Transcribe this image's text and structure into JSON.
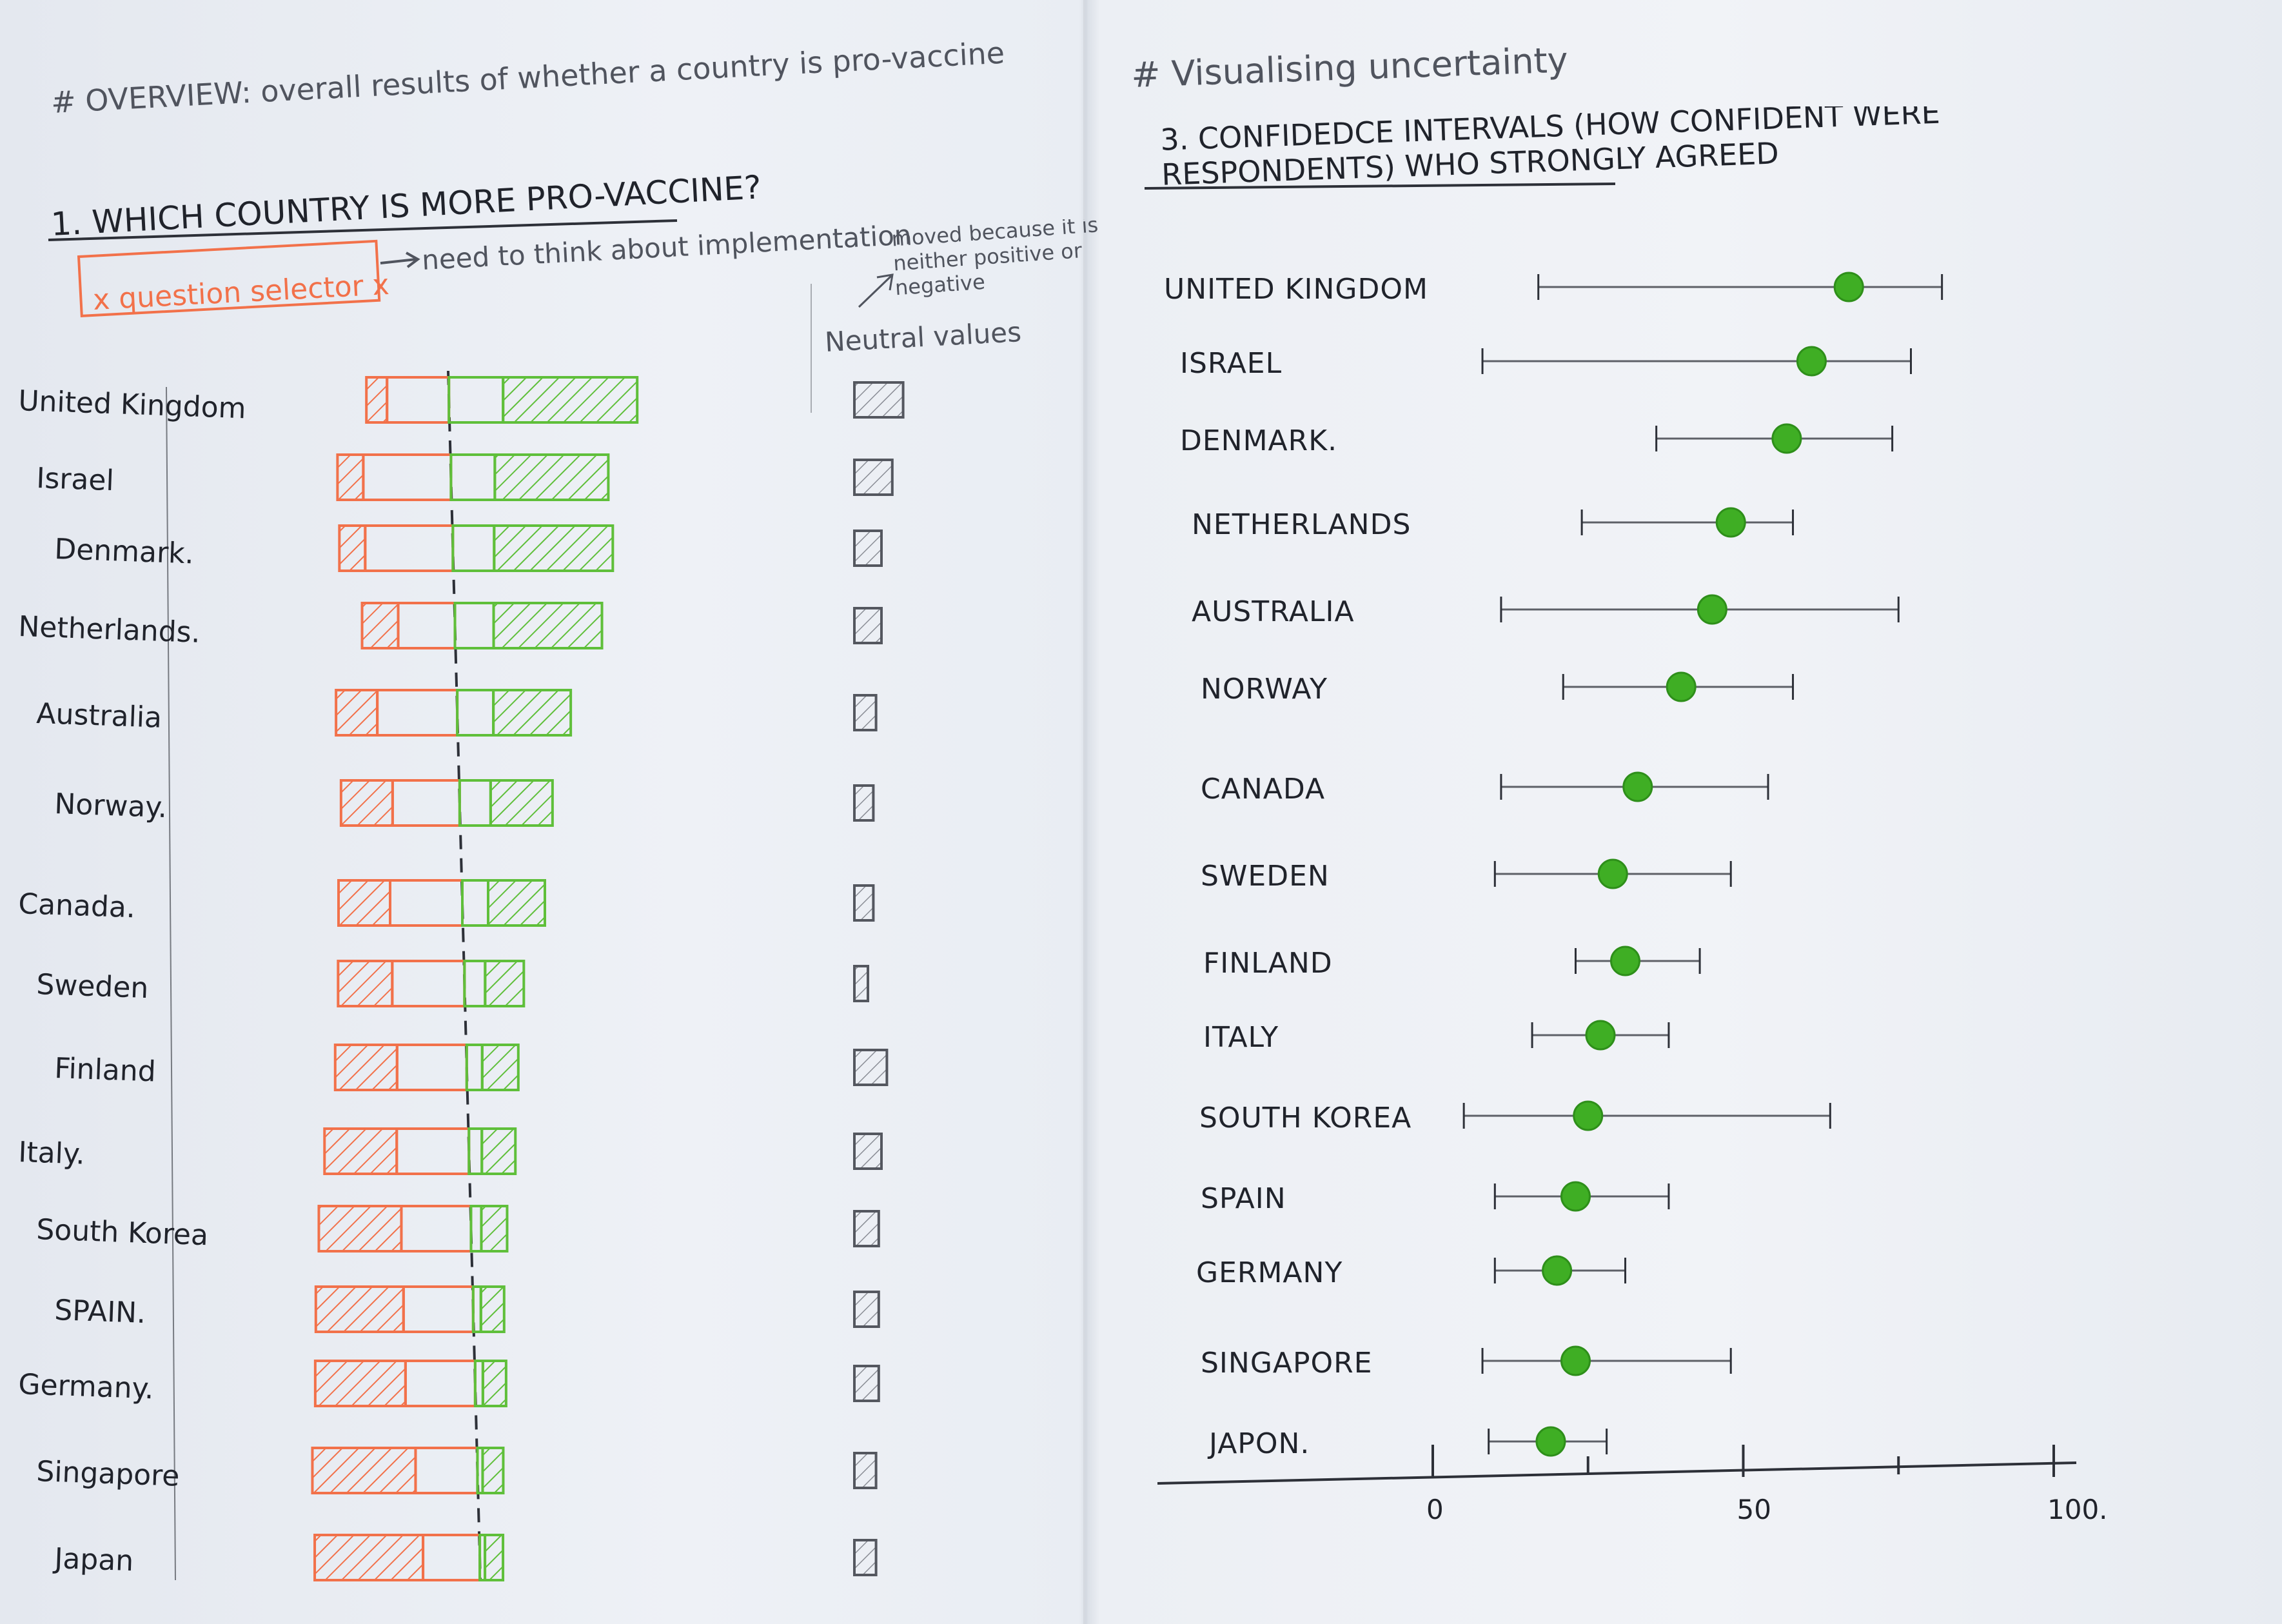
{
  "left_page": {
    "overview_note": "# OVERVIEW: overall results of whether a country is pro-vaccine",
    "section_title": "1. WHICH COUNTRY IS MORE PRO-VACCINE?",
    "selector_label": "x question selector x",
    "selector_note": "need to think about implementation",
    "neutral_note": "moved because it is neither positive or negative",
    "neutral_label": "Neutral values"
  },
  "right_page": {
    "heading": "# Visualising uncertainty",
    "section_title": "3. CONFIDEDCE INTERVALS (HOW CONFIDENT WERE RESPONDENTS) WHO STRONGLY AGREED"
  },
  "colors": {
    "negative": "#f2714a",
    "positive": "#5fbf3a",
    "neutral": "#54575f",
    "dot": "#3fae24",
    "line": "#2d3038"
  },
  "chart_data": [
    {
      "type": "bar",
      "subtype": "diverging-stacked",
      "title": "1. WHICH COUNTRY IS MORE PRO-VACCINE?",
      "categories": [
        "United Kingdom",
        "Israel",
        "Denmark.",
        "Netherlands.",
        "Australia",
        "Norway.",
        "Canada.",
        "Sweden",
        "Finland",
        "Italy.",
        "South Korea",
        "SPAIN.",
        "Germany.",
        "Singapore",
        "Japan"
      ],
      "series": [
        {
          "role": "negative-hatched",
          "values": [
            8,
            10,
            10,
            14,
            16,
            20,
            20,
            21,
            24,
            28,
            32,
            34,
            35,
            40,
            42
          ]
        },
        {
          "role": "negative-outline",
          "values": [
            24,
            34,
            34,
            22,
            31,
            26,
            28,
            28,
            27,
            28,
            27,
            27,
            27,
            24,
            22
          ]
        },
        {
          "role": "positive-outline",
          "values": [
            21,
            17,
            16,
            15,
            14,
            12,
            10,
            8,
            6,
            5,
            4,
            3,
            3,
            2,
            2
          ]
        },
        {
          "role": "positive-hatched",
          "values": [
            52,
            44,
            46,
            42,
            30,
            24,
            22,
            15,
            14,
            13,
            10,
            9,
            9,
            8,
            7
          ]
        },
        {
          "role": "neutral",
          "values": [
            18,
            14,
            10,
            10,
            8,
            7,
            7,
            5,
            12,
            10,
            9,
            9,
            9,
            8,
            8
          ]
        }
      ]
    },
    {
      "type": "scatter",
      "subtype": "confidence-interval",
      "title": "3. CONFIDEDCE INTERVALS (HOW CONFIDENT WERE RESPONDENTS) WHO STRONGLY AGREED",
      "categories": [
        "UNITED KINGDOM",
        "ISRAEL",
        "DENMARK.",
        "NETHERLANDS",
        "AUSTRALIA",
        "NORWAY",
        "CANADA",
        "SWEDEN",
        "FINLAND",
        "ITALY",
        "SOUTH KOREA",
        "SPAIN",
        "GERMANY",
        "SINGAPORE",
        "JAPON."
      ],
      "estimate": [
        67,
        61,
        57,
        48,
        45,
        40,
        33,
        29,
        31,
        27,
        25,
        23,
        20,
        23,
        19
      ],
      "lower": [
        17,
        8,
        36,
        24,
        11,
        21,
        11,
        10,
        23,
        16,
        5,
        10,
        10,
        8,
        9
      ],
      "upper": [
        82,
        77,
        74,
        58,
        75,
        58,
        54,
        48,
        43,
        38,
        64,
        38,
        31,
        48,
        28
      ],
      "xlim": [
        0,
        100
      ],
      "tick_labels": [
        "0",
        "50",
        "100."
      ],
      "minor_ticks": [
        25,
        75
      ]
    }
  ]
}
